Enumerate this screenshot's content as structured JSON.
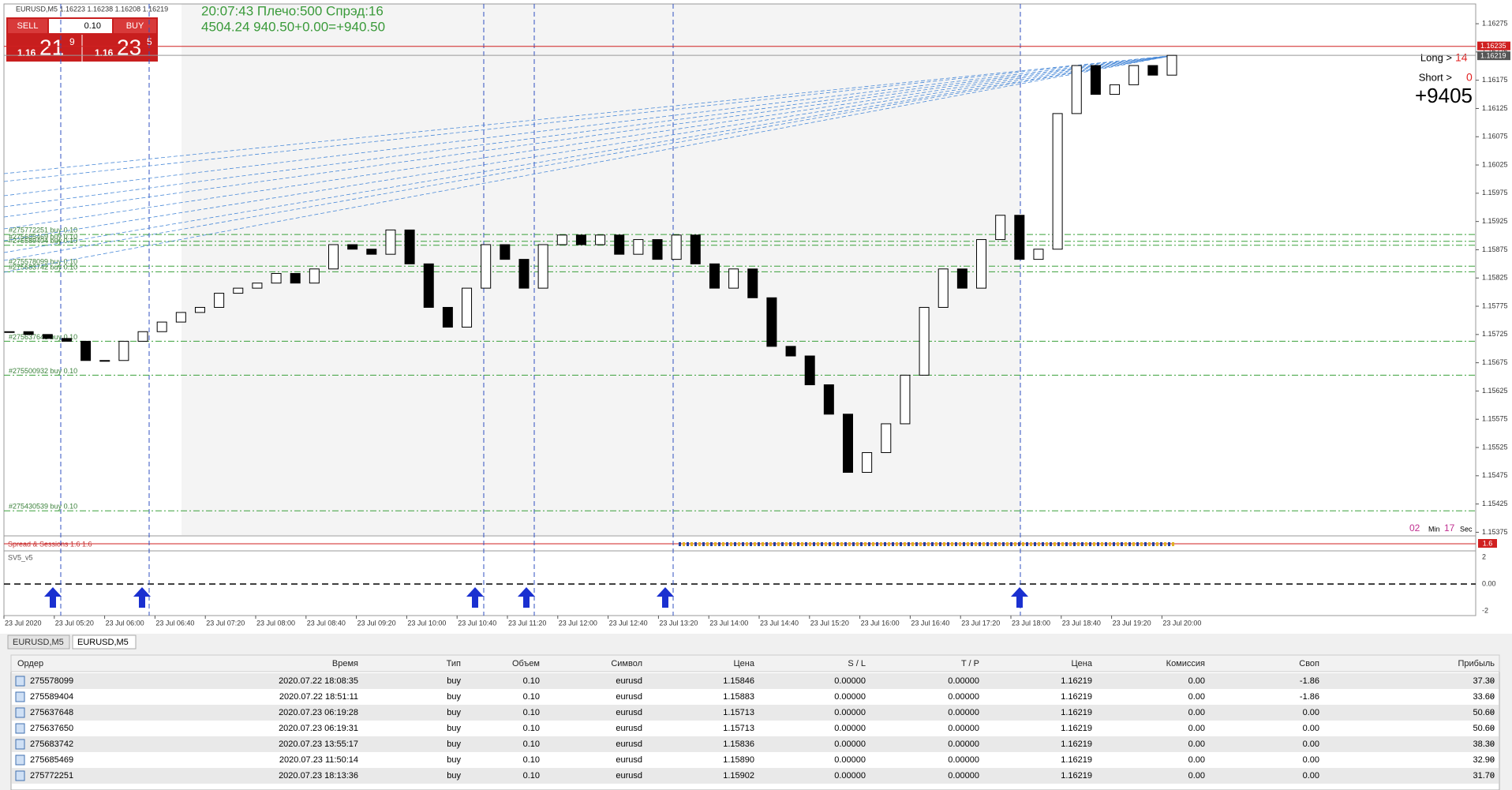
{
  "header": {
    "symbol_line": "EURUSD,M5 1.16223 1.16238 1.16208 1.16219",
    "status_line_1": "20:07:43 Плечо:500 Спрэд:16",
    "status_line_2": "4504.24   940.50+0.00=+940.50"
  },
  "trade_panel": {
    "sell": "SELL",
    "buy": "BUY",
    "lots": "0.10",
    "bid": [
      "1.16",
      "21",
      "9"
    ],
    "ask": [
      "1.16",
      "23",
      "5"
    ]
  },
  "info": {
    "long_label": "Long >",
    "long_value": "14",
    "short_label": "Short >",
    "short_value": "0",
    "total": "+9405",
    "timer": [
      "02",
      "Min",
      "17",
      "Sec"
    ]
  },
  "chart": {
    "ylim": [
      1.1537,
      1.1631
    ],
    "yticks": [
      1.16275,
      1.16225,
      1.16175,
      1.16125,
      1.16075,
      1.16025,
      1.15975,
      1.15925,
      1.15875,
      1.15825,
      1.15775,
      1.15725,
      1.15675,
      1.15625,
      1.15575,
      1.15525,
      1.15475,
      1.15425,
      1.15375
    ],
    "ask_line": 1.16235,
    "bid_line": 1.16219,
    "xticks": [
      "23 Jul 2020",
      "23 Jul 05:20",
      "23 Jul 06:00",
      "23 Jul 06:40",
      "23 Jul 07:20",
      "23 Jul 08:00",
      "23 Jul 08:40",
      "23 Jul 09:20",
      "23 Jul 10:00",
      "23 Jul 10:40",
      "23 Jul 11:20",
      "23 Jul 12:00",
      "23 Jul 12:40",
      "23 Jul 13:20",
      "23 Jul 14:00",
      "23 Jul 14:40",
      "23 Jul 15:20",
      "23 Jul 16:00",
      "23 Jul 16:40",
      "23 Jul 17:20",
      "23 Jul 18:00",
      "23 Jul 18:40",
      "23 Jul 19:20",
      "23 Jul 20:00"
    ],
    "closes": [
      1.1573,
      1.15725,
      1.15718,
      1.15713,
      1.15679,
      1.15679,
      1.15713,
      1.1573,
      1.15747,
      1.15764,
      1.15773,
      1.15798,
      1.15807,
      1.15816,
      1.15833,
      1.15816,
      1.15841,
      1.15884,
      1.15876,
      1.15867,
      1.1591,
      1.1585,
      1.15773,
      1.15738,
      1.15807,
      1.15884,
      1.15858,
      1.15807,
      1.15884,
      1.15901,
      1.15884,
      1.15901,
      1.15867,
      1.15893,
      1.15858,
      1.15901,
      1.1585,
      1.15807,
      1.15841,
      1.1579,
      1.15704,
      1.15687,
      1.15636,
      1.15584,
      1.15481,
      1.15516,
      1.15567,
      1.15653,
      1.15773,
      1.15841,
      1.15807,
      1.15893,
      1.15936,
      1.15858,
      1.15876,
      1.16116,
      1.16201,
      1.1615,
      1.16167,
      1.16201,
      1.16184,
      1.16219
    ],
    "order_lines": [
      {
        "label": "#275772251 buy 0.10",
        "price": 1.15902
      },
      {
        "label": "#275685469 buy 0.10",
        "price": 1.1589
      },
      {
        "label": "#275589404 buy 0.10",
        "price": 1.15883
      },
      {
        "label": "#275578099 buy 0.10",
        "price": 1.15846
      },
      {
        "label": "#275683742 buy 0.10",
        "price": 1.15836
      },
      {
        "label": "#275637648 buy 0.10",
        "price": 1.15713
      },
      {
        "label": "#275500932 buy 0.10",
        "price": 1.15653
      },
      {
        "label": "#275430539 buy 0.10",
        "price": 1.15413
      }
    ],
    "spread_indicator": {
      "title": "Spread & Sessions 1.6 1.6",
      "value_tag": "1.6"
    },
    "sv_indicator": {
      "title": "SV5_v5",
      "yticks": [
        "2",
        "0.00",
        "-2"
      ]
    }
  },
  "tabs": [
    "EURUSD,M5",
    "EURUSD,M5"
  ],
  "table": {
    "columns": [
      "Ордер",
      "Время",
      "Тип",
      "Объем",
      "Символ",
      "Цена",
      "S / L",
      "T / P",
      "Цена",
      "Комиссия",
      "Своп",
      "Прибыль"
    ],
    "rows": [
      [
        "275578099",
        "2020.07.22 18:08:35",
        "buy",
        "0.10",
        "eurusd",
        "1.15846",
        "0.00000",
        "0.00000",
        "1.16219",
        "0.00",
        "-1.86",
        "37.30"
      ],
      [
        "275589404",
        "2020.07.22 18:51:11",
        "buy",
        "0.10",
        "eurusd",
        "1.15883",
        "0.00000",
        "0.00000",
        "1.16219",
        "0.00",
        "-1.86",
        "33.60"
      ],
      [
        "275637648",
        "2020.07.23 06:19:28",
        "buy",
        "0.10",
        "eurusd",
        "1.15713",
        "0.00000",
        "0.00000",
        "1.16219",
        "0.00",
        "0.00",
        "50.60"
      ],
      [
        "275637650",
        "2020.07.23 06:19:31",
        "buy",
        "0.10",
        "eurusd",
        "1.15713",
        "0.00000",
        "0.00000",
        "1.16219",
        "0.00",
        "0.00",
        "50.60"
      ],
      [
        "275683742",
        "2020.07.23 13:55:17",
        "buy",
        "0.10",
        "eurusd",
        "1.15836",
        "0.00000",
        "0.00000",
        "1.16219",
        "0.00",
        "0.00",
        "38.30"
      ],
      [
        "275685469",
        "2020.07.23 11:50:14",
        "buy",
        "0.10",
        "eurusd",
        "1.15890",
        "0.00000",
        "0.00000",
        "1.16219",
        "0.00",
        "0.00",
        "32.90"
      ],
      [
        "275772251",
        "2020.07.23 18:13:36",
        "buy",
        "0.10",
        "eurusd",
        "1.15902",
        "0.00000",
        "0.00000",
        "1.16219",
        "0.00",
        "0.00",
        "31.70"
      ]
    ]
  }
}
